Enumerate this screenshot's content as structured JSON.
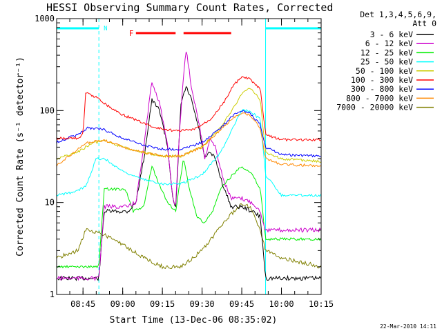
{
  "chart_data": {
    "type": "line",
    "title": "HESSI Observing Summary Count Rates, Corrected",
    "xlabel": "Start Time (13-Dec-06 08:35:02)",
    "ylabel": "Corrected Count Rate (s⁻¹ detector⁻¹)",
    "yscale": "log",
    "ylim": [
      1,
      1000
    ],
    "xlim": [
      "08:35:02",
      "10:15:00"
    ],
    "xticks": [
      "08:45",
      "09:00",
      "09:15",
      "09:30",
      "09:45",
      "10:00",
      "10:15"
    ],
    "yticks": [
      {
        "value": 1,
        "label": "1"
      },
      {
        "value": 10,
        "label": "10"
      },
      {
        "value": 100,
        "label": "100"
      },
      {
        "value": 1000,
        "label": "1000"
      }
    ],
    "legend_header": [
      "Det 1,3,4,5,6,9,",
      "Att 0"
    ],
    "legend_position": "right",
    "series": [
      {
        "name": "3 - 6 keV",
        "color": "#000000",
        "points": [
          [
            "08:35",
            1.5
          ],
          [
            "08:51",
            1.5
          ],
          [
            "08:53",
            8
          ],
          [
            "09:02",
            8
          ],
          [
            "09:05",
            10
          ],
          [
            "09:08",
            30
          ],
          [
            "09:11",
            130
          ],
          [
            "09:14",
            100
          ],
          [
            "09:17",
            40
          ],
          [
            "09:19",
            11
          ],
          [
            "09:20",
            8
          ],
          [
            "09:21",
            30
          ],
          [
            "09:22",
            120
          ],
          [
            "09:24",
            180
          ],
          [
            "09:26",
            130
          ],
          [
            "09:29",
            60
          ],
          [
            "09:31",
            30
          ],
          [
            "09:33",
            35
          ],
          [
            "09:35",
            30
          ],
          [
            "09:38",
            15
          ],
          [
            "09:41",
            9
          ],
          [
            "09:45",
            9
          ],
          [
            "09:49",
            8
          ],
          [
            "09:52",
            7
          ],
          [
            "09:54",
            1.5
          ],
          [
            "10:15",
            1.5
          ]
        ]
      },
      {
        "name": "6 - 12 keV",
        "color": "#cc00cc",
        "points": [
          [
            "08:35",
            1.5
          ],
          [
            "08:51",
            1.5
          ],
          [
            "08:53",
            9
          ],
          [
            "09:02",
            9
          ],
          [
            "09:05",
            10
          ],
          [
            "09:08",
            40
          ],
          [
            "09:11",
            210
          ],
          [
            "09:14",
            120
          ],
          [
            "09:17",
            40
          ],
          [
            "09:19",
            11
          ],
          [
            "09:20",
            9
          ],
          [
            "09:21",
            35
          ],
          [
            "09:23",
            250
          ],
          [
            "09:24",
            460
          ],
          [
            "09:26",
            180
          ],
          [
            "09:29",
            70
          ],
          [
            "09:31",
            30
          ],
          [
            "09:33",
            50
          ],
          [
            "09:35",
            40
          ],
          [
            "09:38",
            18
          ],
          [
            "09:41",
            11
          ],
          [
            "09:45",
            11
          ],
          [
            "09:49",
            10
          ],
          [
            "09:52",
            8
          ],
          [
            "09:54",
            5
          ],
          [
            "10:15",
            5
          ]
        ]
      },
      {
        "name": "12 - 25 keV",
        "color": "#00ee00",
        "points": [
          [
            "08:35",
            2
          ],
          [
            "08:51",
            2
          ],
          [
            "08:53",
            14
          ],
          [
            "09:01",
            14
          ],
          [
            "09:04",
            8
          ],
          [
            "09:08",
            9
          ],
          [
            "09:11",
            25
          ],
          [
            "09:14",
            15
          ],
          [
            "09:17",
            10
          ],
          [
            "09:20",
            8
          ],
          [
            "09:23",
            30
          ],
          [
            "09:25",
            15
          ],
          [
            "09:28",
            7
          ],
          [
            "09:31",
            6
          ],
          [
            "09:34",
            8
          ],
          [
            "09:37",
            14
          ],
          [
            "09:40",
            18
          ],
          [
            "09:45",
            25
          ],
          [
            "09:49",
            20
          ],
          [
            "09:52",
            14
          ],
          [
            "09:54",
            4
          ],
          [
            "10:15",
            4
          ]
        ]
      },
      {
        "name": "25 - 50 keV",
        "color": "#00ffff",
        "points": [
          [
            "08:35",
            12
          ],
          [
            "08:42",
            13
          ],
          [
            "08:46",
            15
          ],
          [
            "08:50",
            30
          ],
          [
            "08:53",
            30
          ],
          [
            "09:00",
            22
          ],
          [
            "09:07",
            18
          ],
          [
            "09:15",
            16
          ],
          [
            "09:22",
            16
          ],
          [
            "09:30",
            20
          ],
          [
            "09:37",
            35
          ],
          [
            "09:41",
            60
          ],
          [
            "09:45",
            100
          ],
          [
            "09:48",
            100
          ],
          [
            "09:52",
            80
          ],
          [
            "09:54",
            20
          ],
          [
            "10:00",
            12
          ],
          [
            "10:15",
            12
          ]
        ]
      },
      {
        "name": "50 - 100 keV",
        "color": "#cccc00",
        "points": [
          [
            "08:35",
            30
          ],
          [
            "08:43",
            35
          ],
          [
            "08:47",
            42
          ],
          [
            "08:53",
            48
          ],
          [
            "09:00",
            40
          ],
          [
            "09:08",
            35
          ],
          [
            "09:15",
            32
          ],
          [
            "09:22",
            32
          ],
          [
            "09:30",
            40
          ],
          [
            "09:37",
            65
          ],
          [
            "09:42",
            110
          ],
          [
            "09:45",
            150
          ],
          [
            "09:48",
            180
          ],
          [
            "09:52",
            130
          ],
          [
            "09:54",
            35
          ],
          [
            "10:00",
            30
          ],
          [
            "10:15",
            28
          ]
        ]
      },
      {
        "name": "100 - 300 keV",
        "color": "#ff0000",
        "points": [
          [
            "08:35",
            50
          ],
          [
            "08:43",
            50
          ],
          [
            "08:45",
            55
          ],
          [
            "08:46",
            155
          ],
          [
            "08:50",
            140
          ],
          [
            "08:55",
            110
          ],
          [
            "09:00",
            90
          ],
          [
            "09:07",
            75
          ],
          [
            "09:12",
            65
          ],
          [
            "09:20",
            60
          ],
          [
            "09:27",
            62
          ],
          [
            "09:33",
            80
          ],
          [
            "09:38",
            120
          ],
          [
            "09:42",
            190
          ],
          [
            "09:45",
            230
          ],
          [
            "09:48",
            220
          ],
          [
            "09:52",
            170
          ],
          [
            "09:54",
            55
          ],
          [
            "10:00",
            48
          ],
          [
            "10:15",
            48
          ]
        ]
      },
      {
        "name": "300 - 800 keV",
        "color": "#0000ff",
        "points": [
          [
            "08:35",
            45
          ],
          [
            "08:43",
            55
          ],
          [
            "08:47",
            65
          ],
          [
            "08:53",
            62
          ],
          [
            "09:00",
            50
          ],
          [
            "09:08",
            42
          ],
          [
            "09:15",
            38
          ],
          [
            "09:22",
            38
          ],
          [
            "09:30",
            45
          ],
          [
            "09:37",
            65
          ],
          [
            "09:42",
            90
          ],
          [
            "09:45",
            100
          ],
          [
            "09:48",
            95
          ],
          [
            "09:52",
            70
          ],
          [
            "09:54",
            40
          ],
          [
            "10:00",
            33
          ],
          [
            "10:15",
            32
          ]
        ]
      },
      {
        "name": "800 - 7000 keV",
        "color": "#ff8800",
        "points": [
          [
            "08:35",
            25
          ],
          [
            "08:43",
            38
          ],
          [
            "08:47",
            45
          ],
          [
            "08:53",
            48
          ],
          [
            "09:00",
            40
          ],
          [
            "09:08",
            35
          ],
          [
            "09:15",
            32
          ],
          [
            "09:22",
            32
          ],
          [
            "09:30",
            40
          ],
          [
            "09:37",
            62
          ],
          [
            "09:42",
            85
          ],
          [
            "09:45",
            95
          ],
          [
            "09:48",
            90
          ],
          [
            "09:52",
            65
          ],
          [
            "09:54",
            30
          ],
          [
            "10:00",
            26
          ],
          [
            "10:15",
            25
          ]
        ]
      },
      {
        "name": "7000 - 20000 keV",
        "color": "#808000",
        "points": [
          [
            "08:35",
            2.5
          ],
          [
            "08:43",
            3
          ],
          [
            "08:46",
            5
          ],
          [
            "08:53",
            4.5
          ],
          [
            "09:00",
            3.5
          ],
          [
            "09:08",
            2.5
          ],
          [
            "09:15",
            2
          ],
          [
            "09:22",
            2
          ],
          [
            "09:30",
            3
          ],
          [
            "09:37",
            5.5
          ],
          [
            "09:42",
            8
          ],
          [
            "09:45",
            9.5
          ],
          [
            "09:48",
            9
          ],
          [
            "09:52",
            5
          ],
          [
            "09:54",
            3
          ],
          [
            "10:00",
            2.5
          ],
          [
            "10:15",
            2
          ]
        ]
      }
    ],
    "annotations": [
      {
        "label": "N",
        "color": "#00ffff",
        "intervals": [
          [
            "08:35",
            "08:51"
          ],
          [
            "09:54",
            "10:15"
          ]
        ]
      },
      {
        "label": "F",
        "color": "#ff0000",
        "intervals": [
          [
            "09:05",
            "09:20"
          ],
          [
            "09:23",
            "09:41"
          ]
        ]
      }
    ],
    "footer_timestamp": "22-Mar-2010 14:11"
  }
}
